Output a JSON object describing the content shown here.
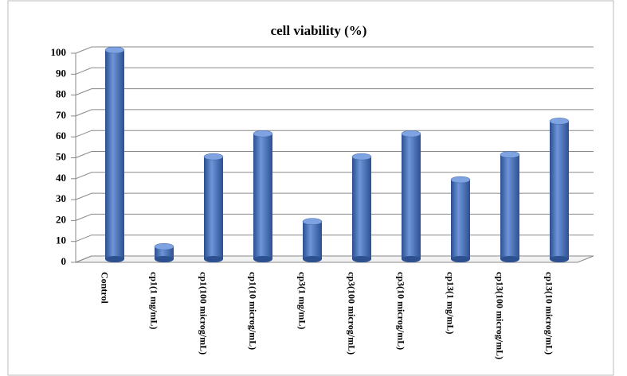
{
  "chart_data": {
    "type": "bar",
    "title": "cell viability (%)",
    "categories": [
      "Control",
      "cp1(1 mg/mL)",
      "cp1(100 microg/mL)",
      "cp1(10 microg/mL)",
      "cp3(1 mg/mL)",
      "cp3(100 microg/mL)",
      "cp3(10 microg/mL)",
      "cp13(1 mg/mL)",
      "cp13(100 microg/mL)",
      "cp13(10 microg/mL)"
    ],
    "values": [
      100,
      6,
      49,
      60,
      18,
      49,
      60,
      38,
      50,
      66
    ],
    "color": "#4472c4",
    "ylim": [
      0,
      100
    ],
    "yticks": [
      0,
      10,
      20,
      30,
      40,
      50,
      60,
      70,
      80,
      90,
      100
    ],
    "grid": true
  }
}
